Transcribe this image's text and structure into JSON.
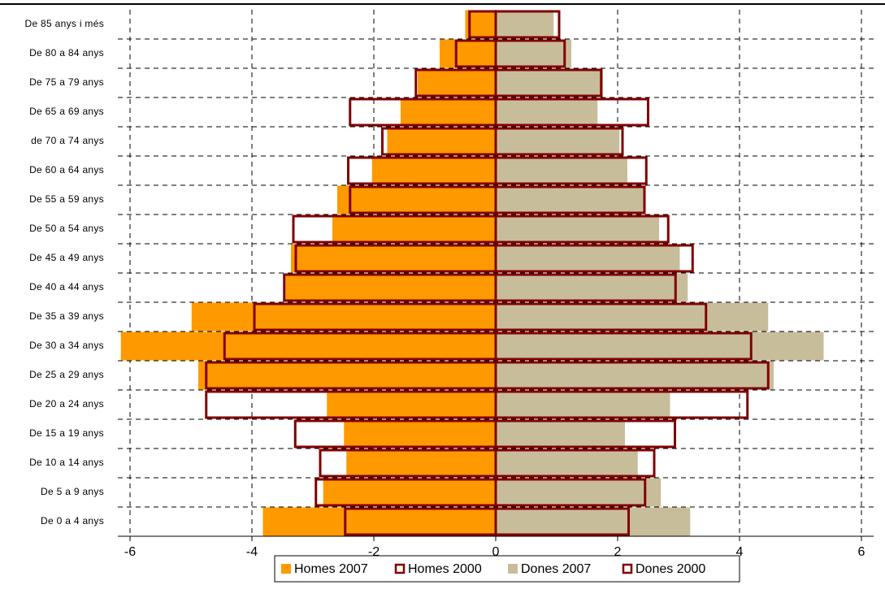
{
  "chart_data": {
    "type": "pyramid",
    "categories": [
      "De 0 a 4 anys",
      "De 5 a 9 anys",
      "De 10 a 14 anys",
      "De 15 a 19 anys",
      "De 20 a 24 anys",
      "De 25 a 29 anys",
      "De 30 a 34 anys",
      "De 35 a 39 anys",
      "De 40 a 44 anys",
      "De 45 a 49 anys",
      "De 50 a 54 anys",
      "De 55 a 59 anys",
      "De 60 a 64 anys",
      "de 70 a 74 anys",
      "De 65 a 69 anys",
      "De 75 a 79 anys",
      "De 80 a 84 anys",
      "De 85 anys i més"
    ],
    "series": [
      {
        "name": "Homes 2007",
        "color": "#ff9900",
        "style": "fill",
        "values": [
          -3.82,
          -2.83,
          -2.45,
          -2.49,
          -2.77,
          -4.88,
          -6.15,
          -4.99,
          -3.45,
          -3.36,
          -2.68,
          -2.6,
          -2.03,
          -1.78,
          -1.56,
          -1.28,
          -0.92,
          -0.5
        ]
      },
      {
        "name": "Homes 2000",
        "color": "#800000",
        "style": "outline",
        "values": [
          -2.47,
          -2.95,
          -2.88,
          -3.29,
          -4.75,
          -4.75,
          -4.45,
          -3.96,
          -3.47,
          -3.28,
          -3.32,
          -2.39,
          -2.42,
          -1.86,
          -2.39,
          -1.31,
          -0.65,
          -0.43
        ]
      },
      {
        "name": "Dones 2007",
        "color": "#c8bd9b",
        "style": "fill",
        "values": [
          3.19,
          2.71,
          2.33,
          2.12,
          2.86,
          4.56,
          5.38,
          4.47,
          3.15,
          3.02,
          2.68,
          2.43,
          2.16,
          2.03,
          1.67,
          1.76,
          1.24,
          0.95
        ]
      },
      {
        "name": "Dones 2000",
        "color": "#800000",
        "style": "outline",
        "values": [
          2.18,
          2.45,
          2.6,
          2.94,
          4.13,
          4.47,
          4.19,
          3.45,
          2.95,
          3.23,
          2.83,
          2.44,
          2.47,
          2.08,
          2.5,
          1.73,
          1.13,
          1.04
        ]
      }
    ],
    "xlim": [
      -6.2,
      6.2
    ],
    "xticks": [
      -6,
      -4,
      -2,
      0,
      2,
      4,
      6
    ],
    "grid": true,
    "legend": "bottom"
  }
}
